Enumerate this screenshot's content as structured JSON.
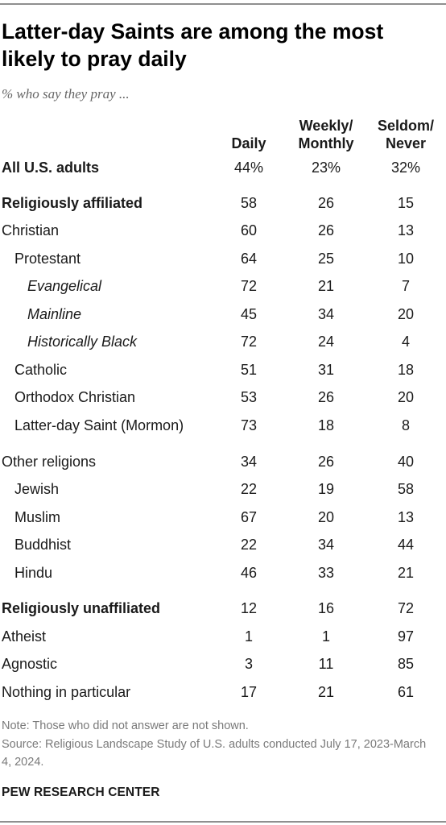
{
  "title": "Latter-day Saints are among the most likely to pray daily",
  "subtitle": "% who say they pray ...",
  "columns": [
    {
      "lines": [
        "Daily"
      ]
    },
    {
      "lines": [
        "Weekly/",
        "Monthly"
      ]
    },
    {
      "lines": [
        "Seldom/",
        "Never"
      ]
    }
  ],
  "chart_data": {
    "type": "table",
    "columns": [
      "Daily",
      "Weekly/Monthly",
      "Seldom/Never"
    ],
    "rows": [
      {
        "label": "All U.S. adults",
        "values": [
          "44%",
          "23%",
          "32%"
        ],
        "level": 0,
        "style": "bold"
      },
      {
        "label": "Religiously affiliated",
        "values": [
          "58",
          "26",
          "15"
        ],
        "level": 0,
        "style": "bold"
      },
      {
        "label": "Christian",
        "values": [
          "60",
          "26",
          "13"
        ],
        "level": 0,
        "style": "normal"
      },
      {
        "label": "Protestant",
        "values": [
          "64",
          "25",
          "10"
        ],
        "level": 1,
        "style": "normal"
      },
      {
        "label": "Evangelical",
        "values": [
          "72",
          "21",
          "7"
        ],
        "level": 2,
        "style": "italic"
      },
      {
        "label": "Mainline",
        "values": [
          "45",
          "34",
          "20"
        ],
        "level": 2,
        "style": "italic"
      },
      {
        "label": "Historically Black",
        "values": [
          "72",
          "24",
          "4"
        ],
        "level": 2,
        "style": "italic"
      },
      {
        "label": "Catholic",
        "values": [
          "51",
          "31",
          "18"
        ],
        "level": 1,
        "style": "normal"
      },
      {
        "label": "Orthodox Christian",
        "values": [
          "53",
          "26",
          "20"
        ],
        "level": 1,
        "style": "normal"
      },
      {
        "label": "Latter-day Saint (Mormon)",
        "values": [
          "73",
          "18",
          "8"
        ],
        "level": 1,
        "style": "normal"
      },
      {
        "label": "Other religions",
        "values": [
          "34",
          "26",
          "40"
        ],
        "level": 0,
        "style": "normal"
      },
      {
        "label": "Jewish",
        "values": [
          "22",
          "19",
          "58"
        ],
        "level": 1,
        "style": "normal"
      },
      {
        "label": "Muslim",
        "values": [
          "67",
          "20",
          "13"
        ],
        "level": 1,
        "style": "normal"
      },
      {
        "label": "Buddhist",
        "values": [
          "22",
          "34",
          "44"
        ],
        "level": 1,
        "style": "normal"
      },
      {
        "label": "Hindu",
        "values": [
          "46",
          "33",
          "21"
        ],
        "level": 1,
        "style": "normal"
      },
      {
        "label": "Religiously unaffiliated",
        "values": [
          "12",
          "16",
          "72"
        ],
        "level": 0,
        "style": "bold"
      },
      {
        "label": "Atheist",
        "values": [
          "1",
          "1",
          "97"
        ],
        "level": 0,
        "style": "normal"
      },
      {
        "label": "Agnostic",
        "values": [
          "3",
          "11",
          "85"
        ],
        "level": 0,
        "style": "normal"
      },
      {
        "label": "Nothing in particular",
        "values": [
          "17",
          "21",
          "61"
        ],
        "level": 0,
        "style": "normal"
      }
    ]
  },
  "note": "Note: Those who did not answer are not shown.",
  "source": "Source: Religious Landscape Study of U.S. adults conducted July 17, 2023-March 4, 2024.",
  "brand": "PEW RESEARCH CENTER",
  "colors": {
    "text": "#1a1a1a",
    "muted": "#7a7a7a",
    "rule": "#8f8f8f"
  }
}
